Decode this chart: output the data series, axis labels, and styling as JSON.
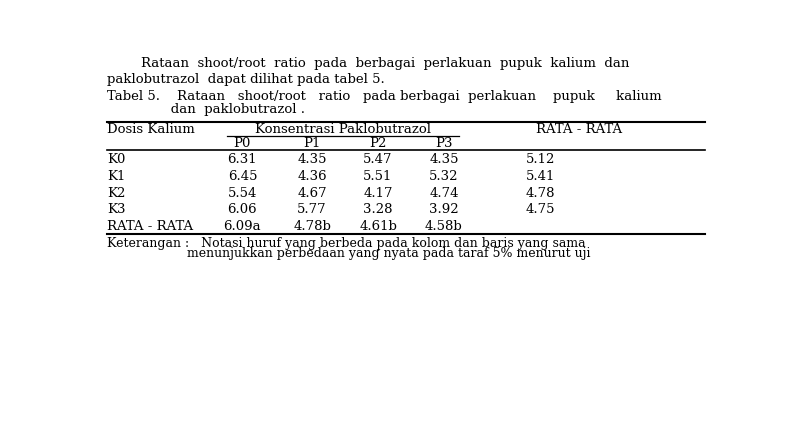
{
  "paragraph1": "        Rataan  shoot/root  ratio  pada  berbagai  perlakuan  pupuk  kalium  dan",
  "paragraph2": "paklobutrazol  dapat dilihat pada tabel 5.",
  "title_line1": "Tabel 5.    Rataan   shoot/root   ratio   pada berbagai  perlakuan    pupuk     kalium",
  "title_line2": "               dan  paklobutrazol .",
  "header_group": "Konsentrasi Paklobutrazol",
  "rows": [
    [
      "K0",
      "6.31",
      "4.35",
      "5.47",
      "4.35",
      "5.12"
    ],
    [
      "K1",
      "6.45",
      "4.36",
      "5.51",
      "5.32",
      "5.41"
    ],
    [
      "K2",
      "5.54",
      "4.67",
      "4.17",
      "4.74",
      "4.78"
    ],
    [
      "K3",
      "6.06",
      "5.77",
      "3.28",
      "3.92",
      "4.75"
    ],
    [
      "RATA - RATA",
      "6.09a",
      "4.78b",
      "4.61b",
      "4.58b",
      ""
    ]
  ],
  "keterangan1": "Keterangan :   Notasi huruf yang berbeda pada kolom dan baris yang sama",
  "keterangan2": "                    menunjukkan perbedaan yang nyata pada taraf 5% menurut uji",
  "bg_color": "#ffffff",
  "text_color": "#000000",
  "font_size": 9.5,
  "line_color": "#000000"
}
